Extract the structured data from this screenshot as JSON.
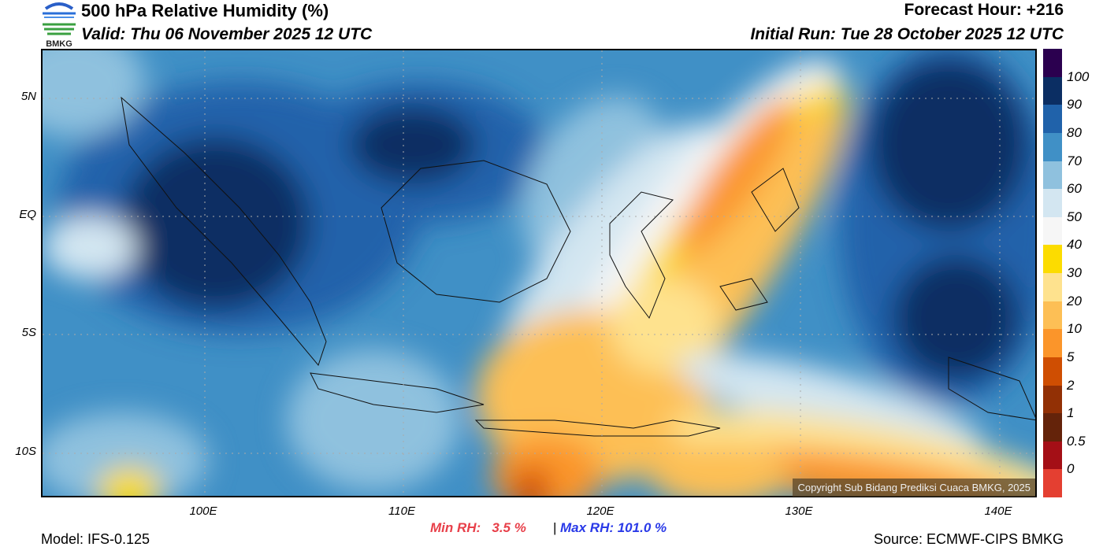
{
  "header": {
    "title": "500 hPa Relative Humidity (%)",
    "valid": "Valid: Thu 06 November 2025 12 UTC",
    "forecast_hour": "Forecast Hour: +216",
    "initial_run": "Initial Run: Tue 28 October 2025 12 UTC",
    "logo_text": "BMKG"
  },
  "axes": {
    "lat_labels": [
      "5N",
      "EQ",
      "5S",
      "10S"
    ],
    "lon_labels": [
      "100E",
      "110E",
      "120E",
      "130E",
      "140E"
    ]
  },
  "colorbar": {
    "labels": [
      "100",
      "90",
      "80",
      "70",
      "60",
      "50",
      "40",
      "30",
      "20",
      "10",
      "5",
      "2",
      "1",
      "0.5",
      "0"
    ],
    "colors": [
      "#2b004f",
      "#0b2e63",
      "#2062aa",
      "#4090c6",
      "#8fc1de",
      "#d3e6f1",
      "#f6f6f6",
      "#fcdc00",
      "#fee28e",
      "#fdbf55",
      "#fb952a",
      "#cf4e02",
      "#923005",
      "#64230a",
      "#a40f16",
      "#e43f31"
    ]
  },
  "copyright": "Copyright Sub Bidang Prediksi Cuaca BMKG, 2025",
  "stats": {
    "min_rh": "Min RH:   3.5 %",
    "separator": "|",
    "max_rh": "Max RH: 101.0 %"
  },
  "footer": {
    "model": "Model: IFS-0.125",
    "source": "Source: ECMWF-CIPS BMKG"
  }
}
